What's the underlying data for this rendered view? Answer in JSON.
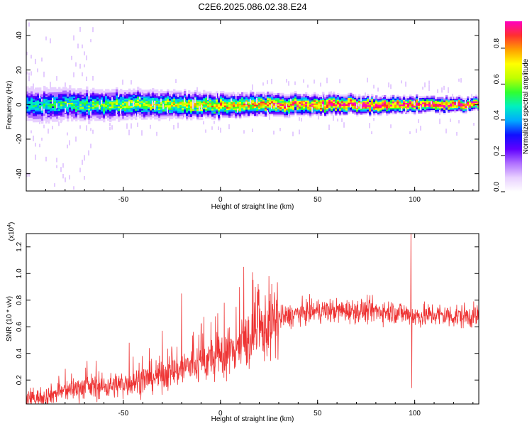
{
  "chart_data": [
    {
      "type": "heatmap",
      "title": "C2E6.2025.086.02.38.E24",
      "xlabel": "Height of straight line (km)",
      "ylabel": "Frequency (Hz)",
      "xlim": [
        -100,
        133
      ],
      "ylim": [
        -50,
        49
      ],
      "xticks": [
        -50,
        0,
        50,
        100
      ],
      "yticks": [
        -40,
        -20,
        0,
        20,
        40
      ],
      "ridge_frequency_hz": 0,
      "band_halfwidth_hz_start": 10,
      "band_halfwidth_hz_end": 4,
      "colorbar": {
        "label": "Normalized spectral amplitude",
        "range": [
          0.0,
          0.95
        ],
        "ticks": [
          "0.0",
          "0.2",
          "0.4",
          "0.6",
          "0.8"
        ],
        "tick_values": [
          0.0,
          0.2,
          0.4,
          0.6,
          0.8
        ],
        "colors": [
          "#ffffff",
          "#e8d0ff",
          "#b070ff",
          "#6000ff",
          "#1010ff",
          "#00aaff",
          "#00f0c0",
          "#30ff30",
          "#c0ff00",
          "#ffff00",
          "#ffa000",
          "#ff3030",
          "#ff00c0"
        ]
      }
    },
    {
      "type": "line",
      "xlabel": "Height of straight line (km)",
      "ylabel": "SNR (10 * v/v)",
      "scale_label": "(x10",
      "scale_exp": "4",
      "scale_close": ")",
      "xlim": [
        -100,
        133
      ],
      "ylim": [
        0.02,
        1.3
      ],
      "xticks": [
        -50,
        0,
        50,
        100
      ],
      "yticks": [
        "0.2",
        "0.4",
        "0.6",
        "0.8",
        "1.0",
        "1.2"
      ],
      "ytick_values": [
        0.2,
        0.4,
        0.6,
        0.8,
        1.0,
        1.2
      ],
      "series": [
        {
          "color": "#ee3333",
          "x": [
            -100,
            -90,
            -80,
            -70,
            -60,
            -50,
            -40,
            -30,
            -20,
            -10,
            0,
            10,
            20,
            30,
            40,
            50,
            60,
            70,
            80,
            90,
            95,
            98,
            100,
            110,
            120,
            133
          ],
          "y": [
            0.05,
            0.08,
            0.12,
            0.15,
            0.15,
            0.17,
            0.2,
            0.24,
            0.29,
            0.33,
            0.38,
            0.46,
            0.56,
            0.66,
            0.7,
            0.72,
            0.72,
            0.72,
            0.72,
            0.71,
            0.7,
            0.68,
            0.68,
            0.69,
            0.68,
            0.68
          ],
          "spikes": [
            {
              "x": -47,
              "y": 0.48
            },
            {
              "x": -30,
              "y": 0.57
            },
            {
              "x": -20,
              "y": 0.85
            },
            {
              "x": -10,
              "y": 0.62
            },
            {
              "x": 2,
              "y": 0.78
            },
            {
              "x": 8,
              "y": 0.75
            },
            {
              "x": 12,
              "y": 1.05
            },
            {
              "x": 18,
              "y": 0.9
            },
            {
              "x": 25,
              "y": 0.98
            },
            {
              "x": 98,
              "y": 1.3
            },
            {
              "x": 98.5,
              "y": 0.14
            }
          ]
        }
      ]
    }
  ]
}
